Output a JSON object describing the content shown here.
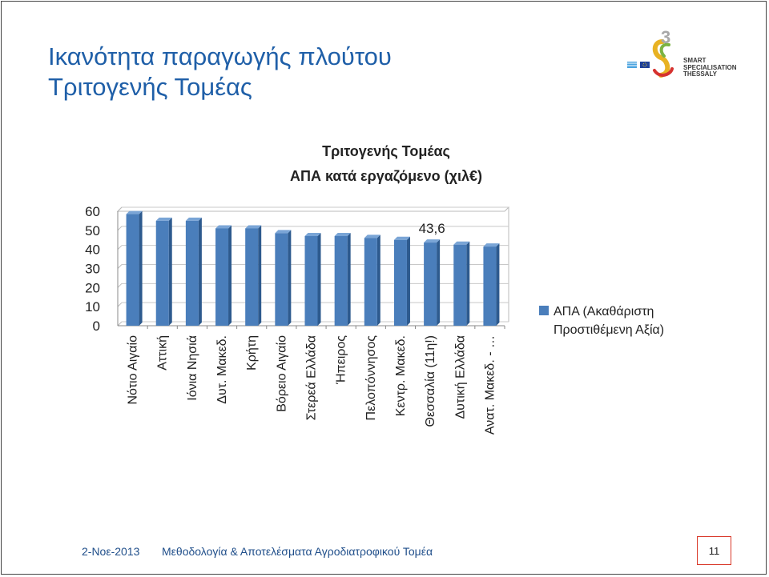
{
  "slide": {
    "title_line1": "Ικανότητα παραγωγής πλούτου",
    "title_line2": "Τριτογενής Τομέας",
    "logo": {
      "number": "3",
      "line1": "SMART",
      "line2": "SPECIALISATION",
      "line3": "THESSALY"
    },
    "footer": {
      "date": "2-Νοε-2013",
      "text": "Μεθοδολογία & Αποτελέσματα Αγροδιατροφικού Τομέα",
      "page": "11"
    }
  },
  "colors": {
    "title": "#1f5fa8",
    "bar": "#4a7ebb",
    "bar_dark": "#2d5a8e",
    "page_border": "#d9392a"
  },
  "chart_data": {
    "type": "bar",
    "title": "Τριτογενής Τομέας",
    "subtitle": "ΑΠΑ κατά εργαζόμενο (χιλ€)",
    "categories": [
      "Νότιο Αιγαίο",
      "Αττική",
      "Ιόνια Νησιά",
      "Δυτ. Μακεδ.",
      "Κρήτη",
      "Βόρειο Αιγαίο",
      "Στερεά Ελλάδα",
      "Ήπειρος",
      "Πελοπόννησος",
      "Κεντρ. Μακεδ.",
      "Θεσσαλία (11η!)",
      "Δυτική Ελλάδα",
      "Ανατ. Μακεδ. - …"
    ],
    "series": [
      {
        "name": "ΑΠΑ (Ακαθάριστη Προστιθέμενη Αξία)",
        "values": [
          58.5,
          55,
          55,
          51,
          51,
          48.5,
          47,
          47,
          46,
          45,
          43.6,
          42.5,
          41.5
        ]
      }
    ],
    "data_labels": [
      {
        "category": "Θεσσαλία (11η!)",
        "text": "43,6"
      }
    ],
    "yticks": [
      "0",
      "10",
      "20",
      "30",
      "40",
      "50",
      "60"
    ],
    "ylim": [
      0,
      60
    ],
    "grid": true,
    "legend": "right",
    "legend_lines": [
      "ΑΠΑ (Ακαθάριστη",
      "Προστιθέμενη Αξία)"
    ]
  }
}
